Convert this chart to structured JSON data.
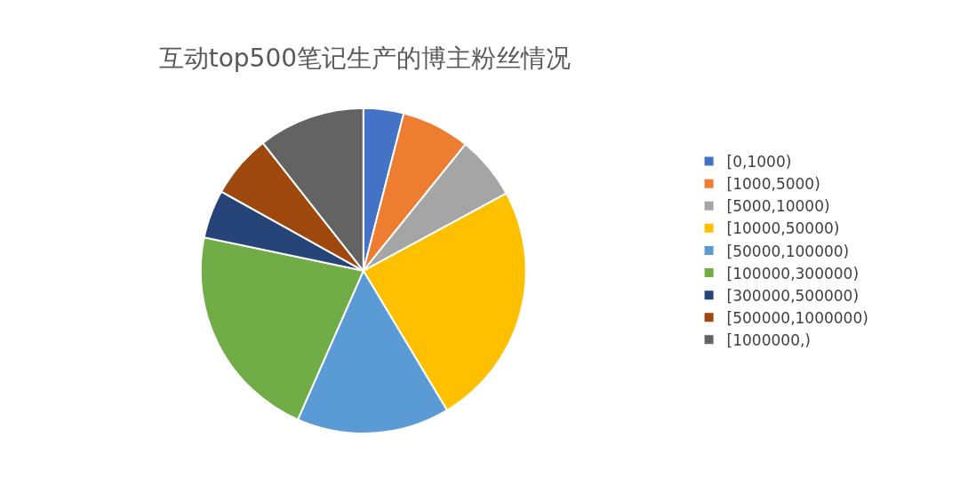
{
  "chart_data": {
    "type": "pie",
    "title": "互动top500笔记生产的博主粉丝情况",
    "categories": [
      "[0,1000)",
      "[1000,5000)",
      "[5000,10000)",
      "[10000,50000)",
      "[50000,100000)",
      "[100000,300000)",
      "[300000,500000)",
      "[500000,1000000)",
      "[1000000,)"
    ],
    "values": [
      4,
      6.8,
      6.3,
      24.3,
      15.2,
      21.7,
      4.8,
      6.3,
      10.6
    ],
    "colors": [
      "#4472c4",
      "#ed7d31",
      "#a5a5a5",
      "#ffc000",
      "#5b9bd5",
      "#70ad47",
      "#264478",
      "#9e480e",
      "#636363"
    ],
    "legend": "right"
  }
}
